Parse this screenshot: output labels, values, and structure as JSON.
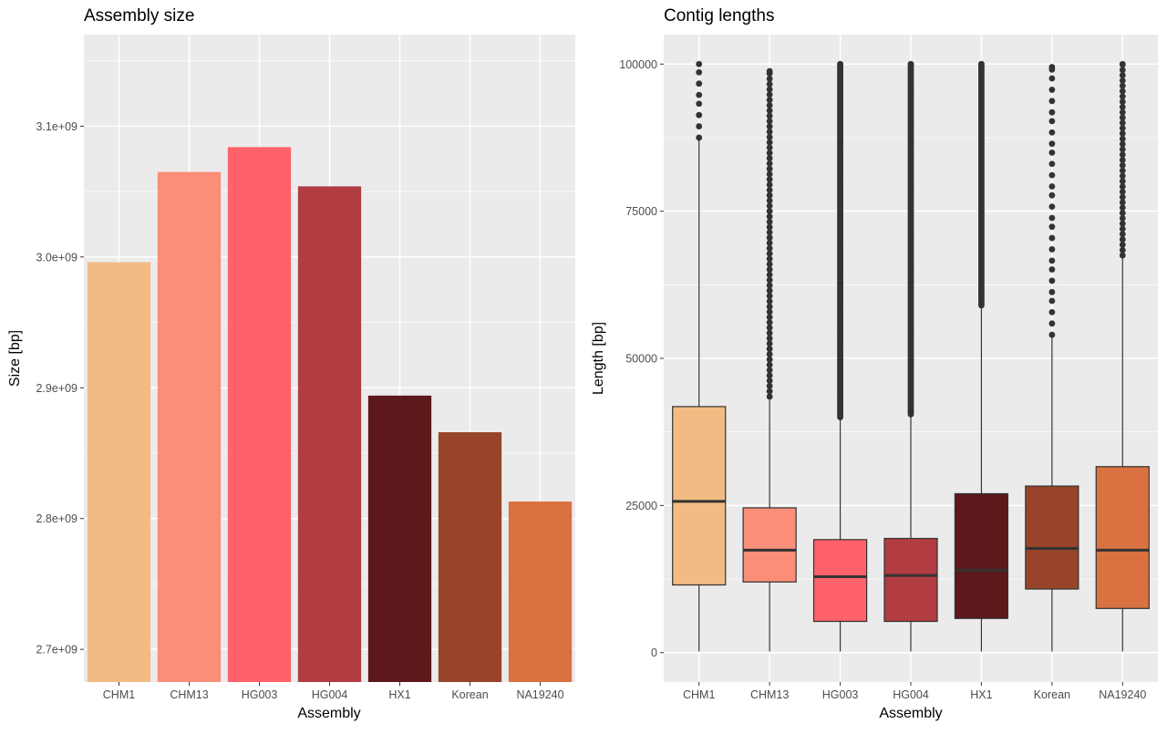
{
  "chart_data": [
    {
      "type": "bar",
      "title": "Assembly size",
      "xlabel": "Assembly",
      "ylabel": "Size [bp]",
      "ylim": [
        2675000000,
        3170000000
      ],
      "yticks": [
        2700000000,
        2800000000,
        2900000000,
        3000000000,
        3100000000
      ],
      "ytick_labels": [
        "2.7e+09",
        "2.8e+09",
        "2.9e+09",
        "3.0e+09",
        "3.1e+09"
      ],
      "grid": true,
      "legend": "none",
      "categories": [
        "CHM1",
        "CHM13",
        "HG003",
        "HG004",
        "HX1",
        "Korean",
        "NA19240"
      ],
      "values": [
        2996000000,
        3065000000,
        3084000000,
        3054000000,
        2894000000,
        2866000000,
        2813000000
      ],
      "colors": [
        "#F2BB84",
        "#FA8E78",
        "#FF626A",
        "#B13C42",
        "#5C181A",
        "#97442B",
        "#DA7140"
      ]
    },
    {
      "type": "box",
      "title": "Contig lengths",
      "xlabel": "Assembly",
      "ylabel": "Length [bp]",
      "ylim": [
        -5000,
        105000
      ],
      "yticks": [
        0,
        25000,
        50000,
        75000,
        100000
      ],
      "ytick_labels": [
        "0",
        "25000",
        "50000",
        "75000",
        "100000"
      ],
      "grid": true,
      "legend": "none",
      "categories": [
        "CHM1",
        "CHM13",
        "HG003",
        "HG004",
        "HX1",
        "Korean",
        "NA19240"
      ],
      "colors": [
        "#F2BB84",
        "#FA8E78",
        "#FF626A",
        "#B13C42",
        "#5C181A",
        "#97442B",
        "#DA7140"
      ],
      "boxes": [
        {
          "whisker_low": 200,
          "q1": 11500,
          "median": 25700,
          "q3": 41800,
          "whisker_high": 87500,
          "outliers_from": 87500,
          "outliers_to": 100000,
          "outlier_density": "sparse"
        },
        {
          "whisker_low": 200,
          "q1": 12000,
          "median": 17400,
          "q3": 24600,
          "whisker_high": 43500,
          "outliers_from": 43500,
          "outliers_to": 98800,
          "outlier_density": "medium"
        },
        {
          "whisker_low": 200,
          "q1": 5300,
          "median": 12900,
          "q3": 19200,
          "whisker_high": 40000,
          "outliers_from": 40000,
          "outliers_to": 100000,
          "outlier_density": "dense"
        },
        {
          "whisker_low": 200,
          "q1": 5300,
          "median": 13100,
          "q3": 19400,
          "whisker_high": 40500,
          "outliers_from": 40500,
          "outliers_to": 100000,
          "outlier_density": "dense"
        },
        {
          "whisker_low": 200,
          "q1": 5800,
          "median": 14000,
          "q3": 27000,
          "whisker_high": 59000,
          "outliers_from": 59000,
          "outliers_to": 100000,
          "outlier_density": "dense"
        },
        {
          "whisker_low": 200,
          "q1": 10800,
          "median": 17700,
          "q3": 28300,
          "whisker_high": 54000,
          "outliers_from": 54000,
          "outliers_to": 99500,
          "outlier_density": "sparse"
        },
        {
          "whisker_low": 200,
          "q1": 7500,
          "median": 17400,
          "q3": 31600,
          "whisker_high": 67500,
          "outliers_from": 67500,
          "outliers_to": 100000,
          "outlier_density": "medium"
        }
      ]
    }
  ]
}
